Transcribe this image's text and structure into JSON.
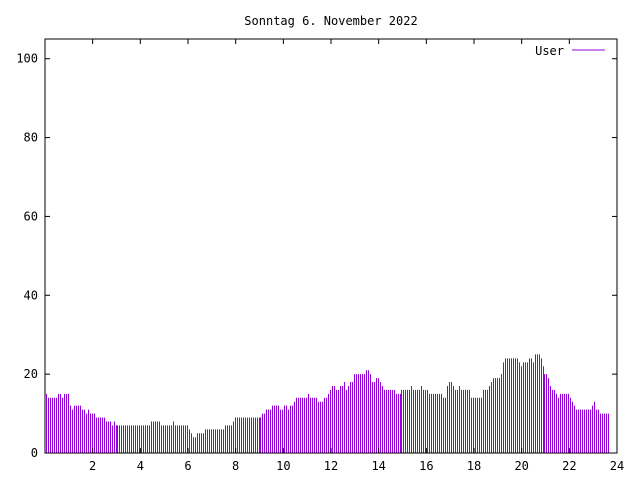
{
  "chart_data": {
    "type": "bar",
    "title": "Sonntag 6. November 2022",
    "xlabel": "",
    "ylabel": "",
    "xlim": [
      0,
      24
    ],
    "ylim": [
      0,
      105
    ],
    "x_ticks": [
      2,
      4,
      6,
      8,
      10,
      12,
      14,
      16,
      18,
      20,
      22,
      24
    ],
    "y_ticks": [
      0,
      20,
      40,
      60,
      80,
      100
    ],
    "grid": false,
    "legend_position": "top-right",
    "colors": {
      "series": "#9400d3",
      "axis": "#000000"
    },
    "series": [
      {
        "name": "User",
        "x_start": 0,
        "x_step": 0.08333,
        "values": [
          15,
          14,
          14,
          14,
          14,
          14,
          15,
          15,
          14,
          15,
          15,
          15,
          12,
          11,
          12,
          12,
          12,
          12,
          11,
          11,
          10,
          11,
          10,
          10,
          10,
          9,
          9,
          9,
          9,
          9,
          8,
          8,
          8,
          7,
          8,
          7,
          7,
          7,
          7,
          7,
          7,
          7,
          7,
          7,
          7,
          7,
          7,
          7,
          7,
          7,
          7,
          7,
          7,
          8,
          8,
          8,
          8,
          8,
          7,
          7,
          7,
          7,
          7,
          7,
          8,
          7,
          7,
          7,
          7,
          7,
          7,
          7,
          6,
          5,
          4,
          4,
          5,
          5,
          5,
          5,
          6,
          6,
          6,
          6,
          6,
          6,
          6,
          6,
          6,
          6,
          7,
          7,
          7,
          7,
          8,
          9,
          9,
          9,
          9,
          9,
          9,
          9,
          9,
          9,
          9,
          9,
          9,
          9,
          9,
          10,
          10,
          11,
          11,
          11,
          12,
          12,
          12,
          12,
          11,
          11,
          12,
          12,
          11,
          12,
          12,
          13,
          14,
          14,
          14,
          14,
          14,
          14,
          15,
          14,
          14,
          14,
          14,
          13,
          13,
          13,
          14,
          14,
          15,
          16,
          17,
          17,
          16,
          16,
          17,
          17,
          18,
          16,
          17,
          18,
          18,
          20,
          20,
          20,
          20,
          20,
          20,
          21,
          21,
          20,
          18,
          18,
          19,
          19,
          18,
          17,
          16,
          16,
          16,
          16,
          16,
          16,
          15,
          15,
          15,
          16,
          16,
          16,
          16,
          16,
          17,
          16,
          16,
          16,
          16,
          17,
          16,
          16,
          16,
          15,
          15,
          15,
          15,
          15,
          15,
          15,
          14,
          14,
          17,
          18,
          18,
          17,
          16,
          16,
          17,
          16,
          16,
          16,
          16,
          16,
          14,
          14,
          14,
          14,
          14,
          14,
          16,
          16,
          16,
          17,
          18,
          19,
          19,
          19,
          19,
          20,
          23,
          24,
          24,
          24,
          24,
          24,
          24,
          24,
          23,
          22,
          23,
          23,
          23,
          24,
          24,
          23,
          25,
          25,
          25,
          24,
          22,
          20,
          20,
          19,
          17,
          16,
          16,
          15,
          14,
          15,
          15,
          15,
          15,
          15,
          14,
          13,
          12,
          11,
          11,
          11,
          11,
          11,
          11,
          11,
          11,
          12,
          13,
          11,
          11,
          10,
          10,
          10,
          10,
          10
        ]
      }
    ]
  }
}
